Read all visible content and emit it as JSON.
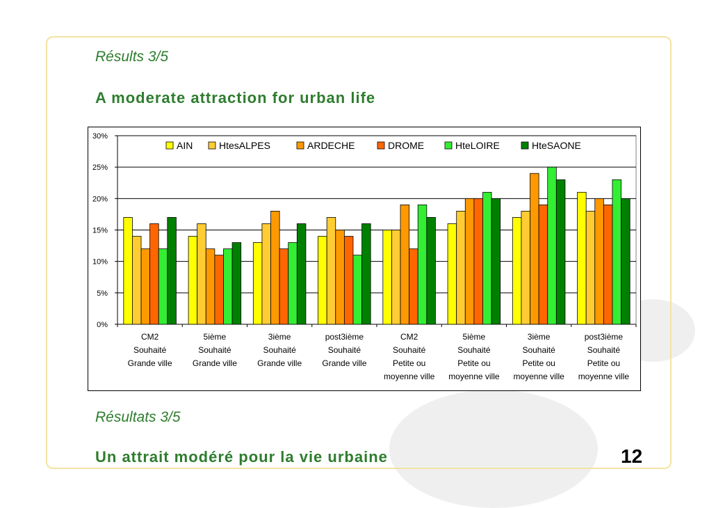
{
  "header": {
    "subtitle_en": "Résults 3/5",
    "title_en": "A moderate attraction for urban life"
  },
  "footer": {
    "subtitle_fr": "Résultats 3/5",
    "title_fr": "Un attrait modéré pour la vie urbaine",
    "page_number": "12"
  },
  "colors": {
    "title_green": "#2e7d2e",
    "frame": "#f3e3a3"
  },
  "chart_data": {
    "type": "bar",
    "title": "",
    "xlabel": "",
    "ylabel": "",
    "ylim": [
      0,
      30
    ],
    "yticks": [
      "0%",
      "5%",
      "10%",
      "15%",
      "20%",
      "25%",
      "30%"
    ],
    "grid": true,
    "legend_position": "top",
    "categories": [
      [
        "CM2",
        "Souhaité",
        "Grande ville"
      ],
      [
        "5ième",
        "Souhaité",
        "Grande ville"
      ],
      [
        "3ième",
        "Souhaité",
        "Grande ville"
      ],
      [
        "post3ième",
        "Souhaité",
        "Grande ville"
      ],
      [
        "CM2",
        "Souhaité",
        "Petite ou",
        "moyenne ville"
      ],
      [
        "5ième",
        "Souhaité",
        "Petite ou",
        "moyenne ville"
      ],
      [
        "3ième",
        "Souhaité",
        "Petite ou",
        "moyenne ville"
      ],
      [
        "post3ième",
        "Souhaité",
        "Petite ou",
        "moyenne ville"
      ]
    ],
    "series": [
      {
        "name": "AIN",
        "color": "#ffff00",
        "values": [
          17,
          14,
          13,
          14,
          15,
          16,
          17,
          21
        ]
      },
      {
        "name": "HtesALPES",
        "color": "#ffcc33",
        "values": [
          14,
          16,
          16,
          17,
          15,
          18,
          18,
          18
        ]
      },
      {
        "name": "ARDECHE",
        "color": "#ff9900",
        "values": [
          12,
          12,
          18,
          15,
          19,
          20,
          24,
          20
        ]
      },
      {
        "name": "DROME",
        "color": "#ff6600",
        "values": [
          16,
          11,
          12,
          14,
          12,
          20,
          19,
          19
        ]
      },
      {
        "name": "HteLOIRE",
        "color": "#33ee33",
        "values": [
          12,
          12,
          13,
          11,
          19,
          21,
          25,
          23
        ]
      },
      {
        "name": "HteSAONE",
        "color": "#008000",
        "values": [
          17,
          13,
          16,
          16,
          17,
          20,
          23,
          20
        ]
      }
    ]
  }
}
